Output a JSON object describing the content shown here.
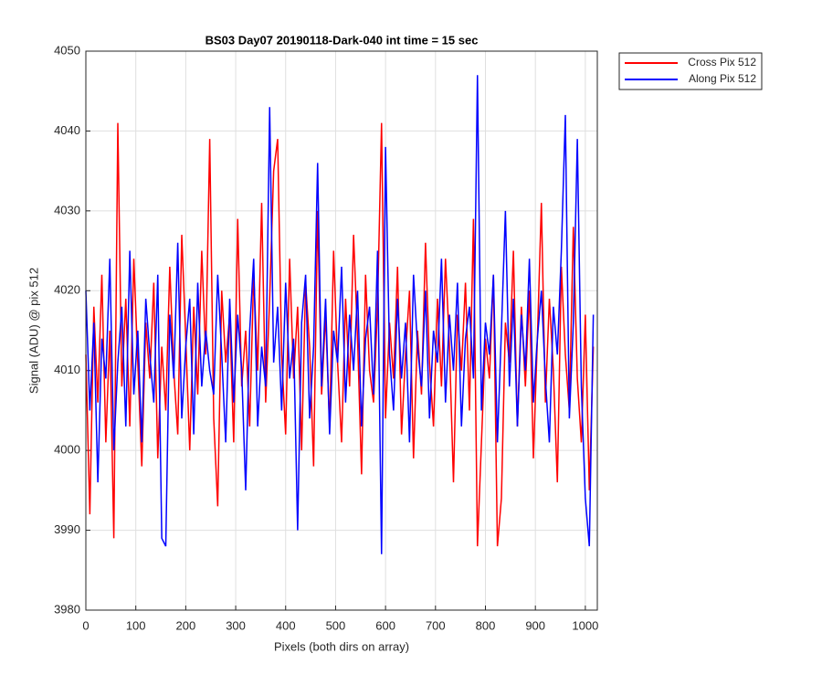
{
  "chart_data": {
    "type": "line",
    "title": "BS03 Day07 20190118-Dark-040 int time = 15 sec",
    "xlabel": "Pixels (both dirs on array)",
    "ylabel": "Signal (ADU) @ pix 512",
    "xlim": [
      0,
      1024
    ],
    "ylim": [
      3980,
      4050
    ],
    "xticks": [
      0,
      100,
      200,
      300,
      400,
      500,
      600,
      700,
      800,
      900,
      1000
    ],
    "yticks": [
      3980,
      3990,
      4000,
      4010,
      4020,
      4030,
      4040,
      4050
    ],
    "grid": true,
    "legend": "outside-top-right",
    "x": [
      0,
      8,
      16,
      24,
      32,
      40,
      48,
      56,
      64,
      72,
      80,
      88,
      96,
      104,
      112,
      120,
      128,
      136,
      144,
      152,
      160,
      168,
      176,
      184,
      192,
      200,
      208,
      216,
      224,
      232,
      240,
      248,
      256,
      264,
      272,
      280,
      288,
      296,
      304,
      312,
      320,
      328,
      336,
      344,
      352,
      360,
      368,
      376,
      384,
      392,
      400,
      408,
      416,
      424,
      432,
      440,
      448,
      456,
      464,
      472,
      480,
      488,
      496,
      504,
      512,
      520,
      528,
      536,
      544,
      552,
      560,
      568,
      576,
      584,
      592,
      600,
      608,
      616,
      624,
      632,
      640,
      648,
      656,
      664,
      672,
      680,
      688,
      696,
      704,
      712,
      720,
      728,
      736,
      744,
      752,
      760,
      768,
      776,
      784,
      792,
      800,
      808,
      816,
      824,
      832,
      840,
      848,
      856,
      864,
      872,
      880,
      888,
      896,
      904,
      912,
      920,
      928,
      936,
      944,
      952,
      960,
      968,
      976,
      984,
      992,
      1000,
      1008,
      1016
    ],
    "series": [
      {
        "name": "Cross Pix 512",
        "color": "#ff0000",
        "values": [
          4012,
          3992,
          4018,
          4006,
          4022,
          4001,
          4015,
          3989,
          4041,
          4008,
          4019,
          4003,
          4024,
          4011,
          3998,
          4016,
          4009,
          4021,
          3999,
          4013,
          4005,
          4023,
          4010,
          4002,
          4027,
          4014,
          4000,
          4018,
          4007,
          4025,
          4012,
          4039,
          4004,
          3993,
          4020,
          4011,
          4017,
          4001,
          4029,
          4008,
          4015,
          4003,
          4022,
          4010,
          4031,
          4006,
          4019,
          4035,
          4039,
          4012,
          4002,
          4024,
          4009,
          4018,
          4000,
          4021,
          4013,
          3998,
          4030,
          4007,
          4017,
          4003,
          4025,
          4011,
          4001,
          4019,
          4008,
          4027,
          4014,
          3997,
          4022,
          4010,
          4006,
          4018,
          4041,
          4004,
          4016,
          4009,
          4023,
          4002,
          4012,
          4020,
          3999,
          4015,
          4007,
          4026,
          4011,
          4003,
          4019,
          4008,
          4024,
          4013,
          3996,
          4017,
          4010,
          4021,
          4005,
          4029,
          3988,
          4001,
          4014,
          4009,
          4022,
          3988,
          3994,
          4016,
          4011,
          4025,
          4003,
          4018,
          4008,
          4020,
          3999,
          4014,
          4031,
          4006,
          4019,
          4010,
          3996,
          4023,
          4012,
          4005,
          4028,
          4009,
          4001,
          4017,
          3995,
          4013
        ]
      },
      {
        "name": "Along Pix 512",
        "color": "#0000ff",
        "values": [
          4020,
          4005,
          4016,
          3996,
          4014,
          4009,
          4024,
          4000,
          4011,
          4018,
          4003,
          4025,
          4007,
          4015,
          4001,
          4019,
          4012,
          4006,
          4022,
          3989,
          3988,
          4017,
          4009,
          4026,
          4004,
          4013,
          4019,
          4002,
          4021,
          4008,
          4015,
          4010,
          4007,
          4022,
          4012,
          4001,
          4019,
          4006,
          4017,
          4010,
          3995,
          4015,
          4024,
          4003,
          4013,
          4008,
          4043,
          4011,
          4018,
          4005,
          4021,
          4009,
          4014,
          3990,
          4016,
          4022,
          4004,
          4013,
          4036,
          4008,
          4019,
          4002,
          4015,
          4011,
          4023,
          4006,
          4017,
          4010,
          4020,
          4003,
          4014,
          4018,
          4007,
          4025,
          3987,
          4038,
          4012,
          4005,
          4019,
          4009,
          4016,
          4001,
          4022,
          4013,
          4008,
          4020,
          4004,
          4015,
          4011,
          4024,
          4006,
          4017,
          4010,
          4021,
          4003,
          4014,
          4018,
          4009,
          4047,
          4005,
          4016,
          4012,
          4022,
          4001,
          4015,
          4030,
          4008,
          4019,
          4003,
          4017,
          4010,
          4024,
          4006,
          4014,
          4020,
          4009,
          4001,
          4018,
          4012,
          4025,
          4042,
          4004,
          4016,
          4039,
          4008,
          3994,
          3988,
          4017
        ]
      }
    ]
  }
}
